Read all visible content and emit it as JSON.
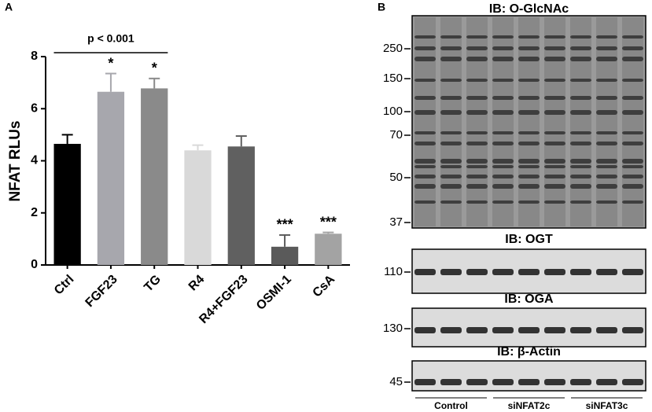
{
  "panel_labels": [
    "A",
    "B"
  ],
  "chart_data": {
    "type": "bar",
    "ylabel": "NFAT RLUs",
    "categories": [
      "Ctrl",
      "FGF23",
      "TG",
      "R4",
      "R4+FGF23",
      "OSMI-1",
      "CsA"
    ],
    "values": [
      4.65,
      6.65,
      6.78,
      4.4,
      4.55,
      0.7,
      1.2
    ],
    "errors": [
      0.35,
      0.7,
      0.38,
      0.2,
      0.4,
      0.45,
      0.05
    ],
    "colors": [
      "#000000",
      "#a7a7ad",
      "#8a8a8a",
      "#d9d9d9",
      "#606060",
      "#5a5a5a",
      "#a3a3a3"
    ],
    "ylim": [
      0,
      8
    ],
    "yticks": [
      0,
      2,
      4,
      6,
      8
    ],
    "annotations": [
      {
        "label": "*",
        "category": "FGF23"
      },
      {
        "label": "*",
        "category": "TG"
      },
      {
        "label": "***",
        "category": "OSMI-1"
      },
      {
        "label": "***",
        "category": "CsA"
      }
    ],
    "bracket": {
      "label": "p < 0.001",
      "from": "Ctrl",
      "to": "TG"
    }
  },
  "blot": {
    "panels": [
      {
        "title": "IB: O-GlcNAc",
        "markers": [
          250,
          150,
          100,
          70,
          50,
          37
        ]
      },
      {
        "title": "IB: OGT",
        "markers": [
          110
        ]
      },
      {
        "title": "IB: OGA",
        "markers": [
          130
        ]
      },
      {
        "title": "IB: β-Actin",
        "markers": [
          45
        ]
      }
    ],
    "groups": [
      "Control",
      "siNFAT2c",
      "siNFAT3c"
    ]
  }
}
